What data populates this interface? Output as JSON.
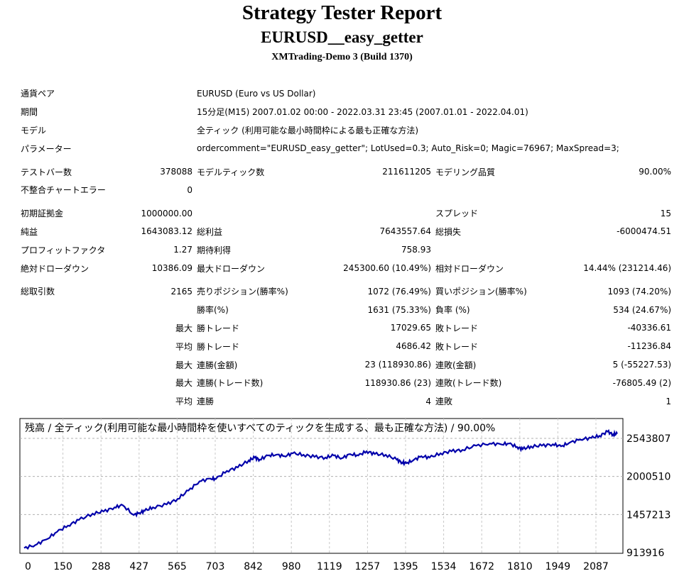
{
  "header": {
    "title": "Strategy Tester Report",
    "subtitle": "EURUSD__easy_getter",
    "server": "XMTrading-Demo 3 (Build 1370)"
  },
  "info": {
    "symbol_label": "通貨ペア",
    "symbol_value": "EURUSD (Euro vs US Dollar)",
    "period_label": "期間",
    "period_value": "15分足(M15) 2007.01.02 00:00 - 2022.03.31 23:45 (2007.01.01 - 2022.04.01)",
    "model_label": "モデル",
    "model_value": "全ティック (利用可能な最小時間枠による最も正確な方法)",
    "params_label": "パラメーター",
    "params_value": "ordercomment=\"EURUSD_easy_getter\"; LotUsed=0.3; Auto_Risk=0; Magic=76967; MaxSpread=3;"
  },
  "stats": {
    "bars_label": "テストバー数",
    "bars_value": "378088",
    "ticks_label": "モデルティック数",
    "ticks_value": "211611205",
    "quality_label": "モデリング品質",
    "quality_value": "90.00%",
    "mismatch_label": "不整合チャートエラー",
    "mismatch_value": "0",
    "deposit_label": "初期証拠金",
    "deposit_value": "1000000.00",
    "spread_label": "スプレッド",
    "spread_value": "15",
    "net_label": "純益",
    "net_value": "1643083.12",
    "gross_profit_label": "総利益",
    "gross_profit_value": "7643557.64",
    "gross_loss_label": "総損失",
    "gross_loss_value": "-6000474.51",
    "pf_label": "プロフィットファクタ",
    "pf_value": "1.27",
    "payoff_label": "期待利得",
    "payoff_value": "758.93",
    "abs_dd_label": "絶対ドローダウン",
    "abs_dd_value": "10386.09",
    "max_dd_label": "最大ドローダウン",
    "max_dd_value": "245300.60 (10.49%)",
    "rel_dd_label": "相対ドローダウン",
    "rel_dd_value": "14.44% (231214.46)",
    "trades_label": "総取引数",
    "trades_value": "2165",
    "short_label": "売りポジション(勝率%)",
    "short_value": "1072 (76.49%)",
    "long_label": "買いポジション(勝率%)",
    "long_value": "1093 (74.20%)",
    "win_rate_label": "勝率(%)",
    "win_rate_value": "1631 (75.33%)",
    "loss_rate_label": "負率 (%)",
    "loss_rate_value": "534 (24.67%)",
    "largest_prefix": "最大",
    "largest_win_label": "勝トレード",
    "largest_win_value": "17029.65",
    "largest_loss_label": "敗トレード",
    "largest_loss_value": "-40336.61",
    "average_prefix": "平均",
    "avg_win_label": "勝トレード",
    "avg_win_value": "4686.42",
    "avg_loss_label": "敗トレード",
    "avg_loss_value": "-11236.84",
    "max_prefix_1": "最大",
    "max_cons_win_amt_label": "連勝(金額)",
    "max_cons_win_amt_value": "23 (118930.86)",
    "max_cons_loss_amt_label": "連敗(金額)",
    "max_cons_loss_amt_value": "5 (-55227.53)",
    "max_prefix_2": "最大",
    "max_cons_win_cnt_label": "連勝(トレード数)",
    "max_cons_win_cnt_value": "118930.86 (23)",
    "max_cons_loss_cnt_label": "連敗(トレード数)",
    "max_cons_loss_cnt_value": "-76805.49 (2)",
    "avg_prefix_2": "平均",
    "avg_cons_win_label": "連勝",
    "avg_cons_win_value": "4",
    "avg_cons_loss_label": "連敗",
    "avg_cons_loss_value": "1"
  },
  "chart_data": {
    "type": "line",
    "title": "残高 / 全ティック(利用可能な最小時間枠を使いすべてのティックを生成する、最も正確な方法) / 90.00%",
    "x_ticks": [
      "0",
      "150",
      "288",
      "427",
      "565",
      "703",
      "842",
      "980",
      "1119",
      "1257",
      "1395",
      "1534",
      "1672",
      "1810",
      "1949",
      "2087"
    ],
    "y_ticks": [
      "2543807",
      "2000510",
      "1457213",
      "913916"
    ],
    "ylim": [
      913916,
      2543807
    ],
    "xlim": [
      0,
      2165
    ],
    "grid": true,
    "line_color": "#0000aa",
    "series": [
      {
        "x": [
          0,
          40,
          80,
          120,
          160,
          200,
          250,
          290,
          330,
          360,
          400,
          420,
          440,
          470,
          520,
          560,
          600,
          640,
          680,
          700,
          740,
          780,
          820,
          842,
          860,
          890,
          920,
          950,
          980,
          1020,
          1060,
          1100,
          1130,
          1160,
          1190,
          1220,
          1250,
          1280,
          1320,
          1360,
          1380,
          1395,
          1420,
          1450,
          1480,
          1520,
          1560,
          1600,
          1650,
          1700,
          1740,
          1770,
          1800,
          1820,
          1850,
          1890,
          1930,
          1960,
          1990,
          2030,
          2070,
          2100,
          2130,
          2150,
          2165
        ],
        "y": [
          980000,
          1020000,
          1100000,
          1210000,
          1300000,
          1380000,
          1470000,
          1500000,
          1560000,
          1590000,
          1450000,
          1480000,
          1510000,
          1560000,
          1600000,
          1680000,
          1800000,
          1930000,
          1970000,
          1965000,
          2080000,
          2130000,
          2230000,
          2270000,
          2240000,
          2300000,
          2310000,
          2290000,
          2330000,
          2310000,
          2280000,
          2270000,
          2300000,
          2260000,
          2320000,
          2300000,
          2360000,
          2320000,
          2310000,
          2240000,
          2200000,
          2190000,
          2230000,
          2290000,
          2270000,
          2330000,
          2360000,
          2380000,
          2440000,
          2470000,
          2460000,
          2470000,
          2420000,
          2390000,
          2430000,
          2440000,
          2460000,
          2430000,
          2480000,
          2530000,
          2550000,
          2580000,
          2640000,
          2600000,
          2610000
        ]
      }
    ]
  }
}
